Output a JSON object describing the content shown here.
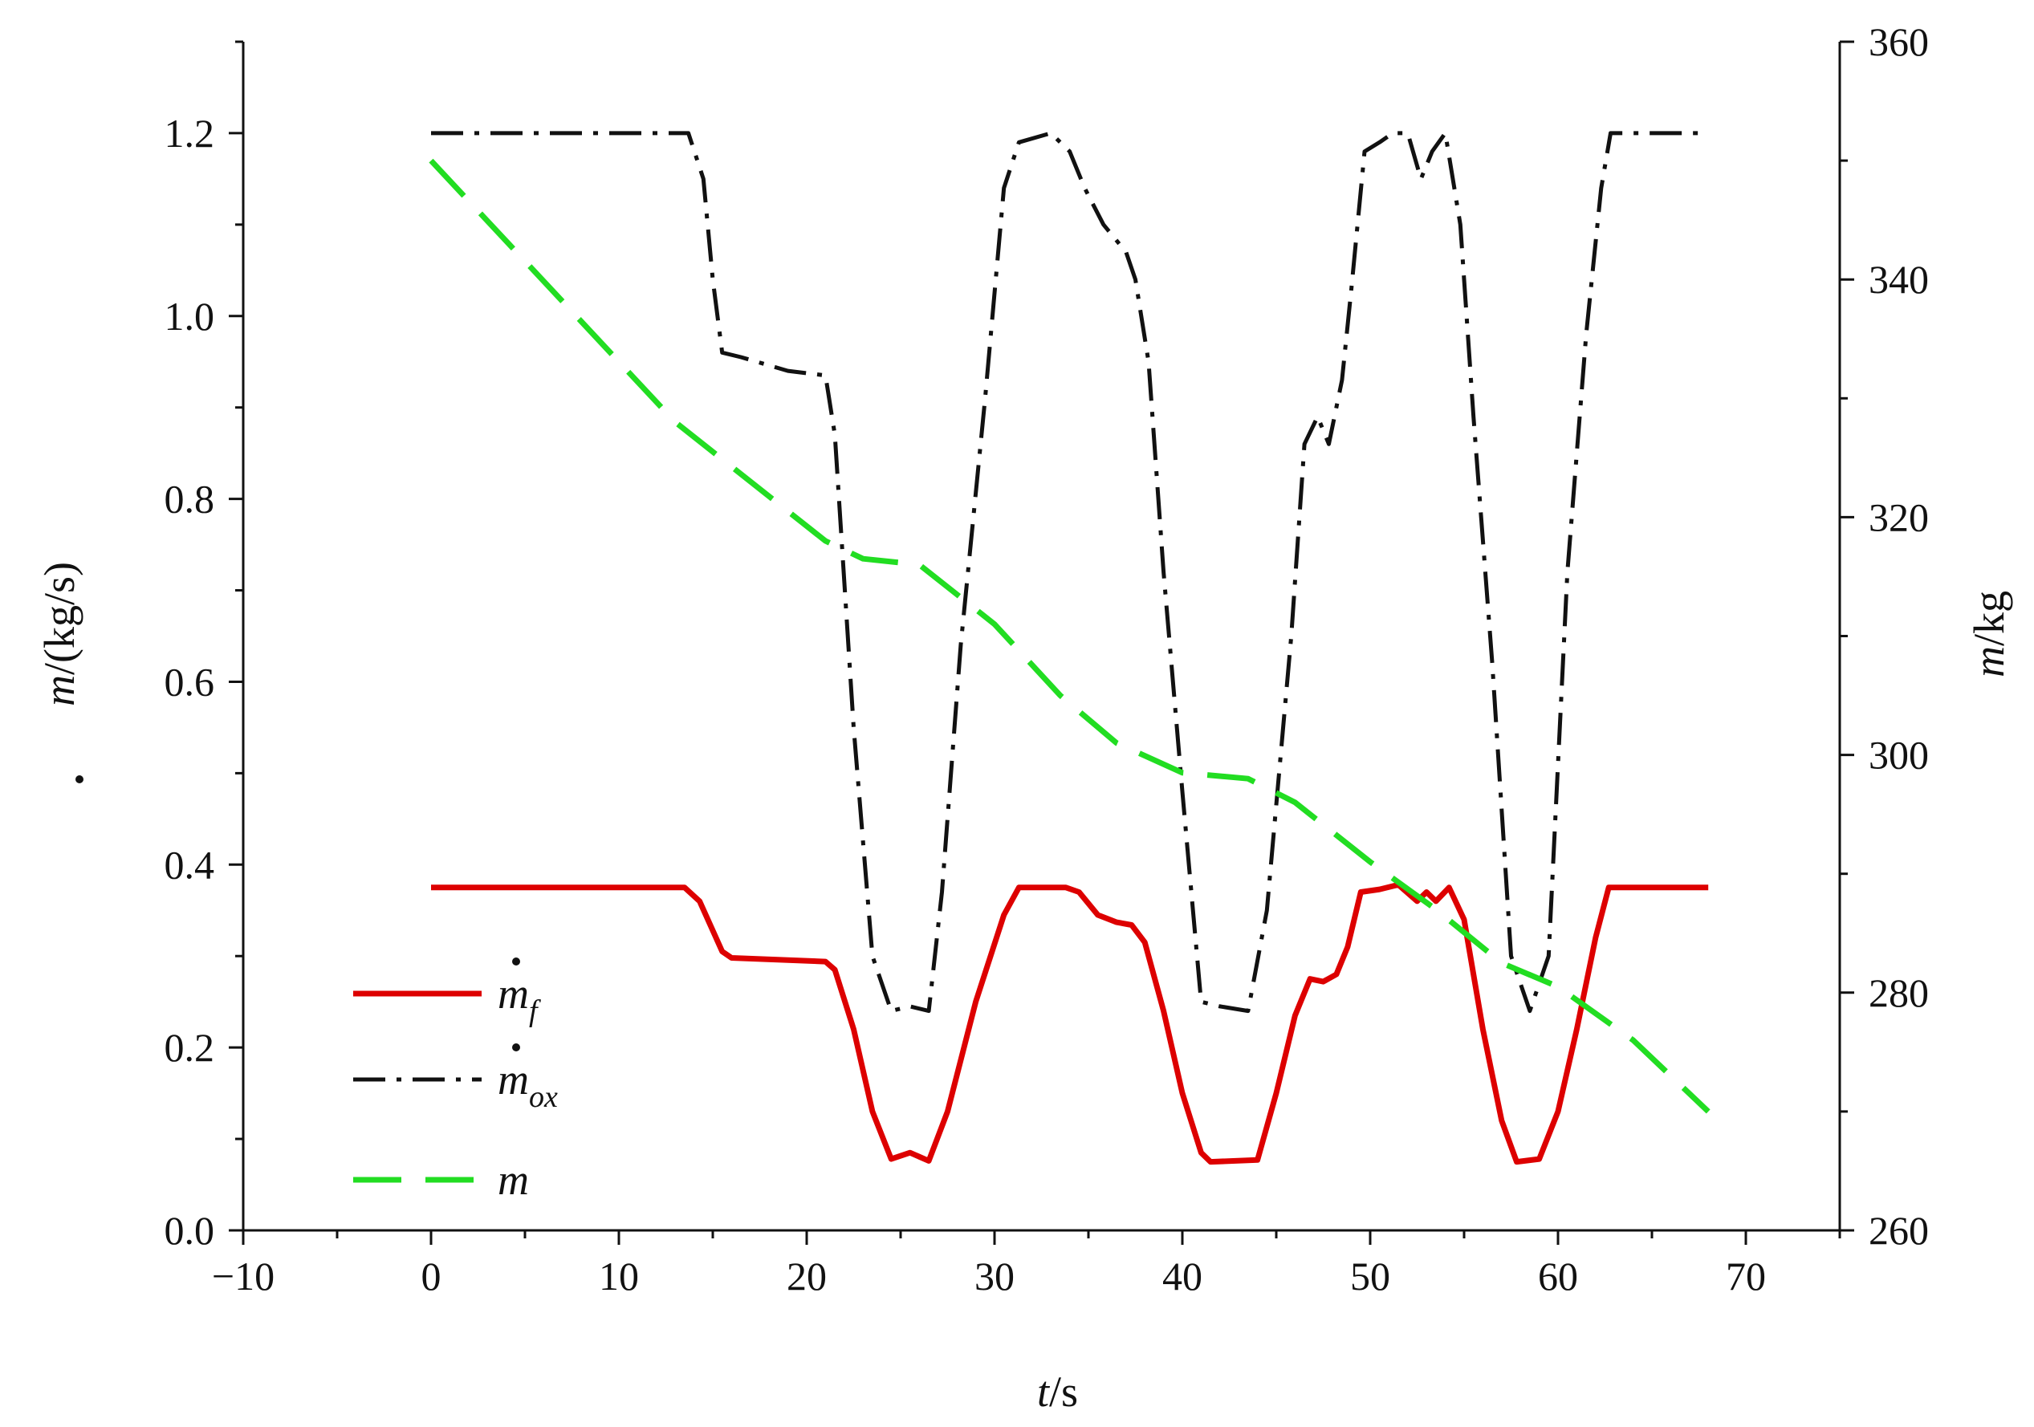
{
  "chart_data": {
    "type": "line",
    "x_axis": {
      "label_var": "t",
      "label_unit": "/s",
      "lim": [
        -10,
        75
      ],
      "ticks": [
        -10,
        0,
        10,
        20,
        30,
        40,
        50,
        60,
        70
      ],
      "tick_labels": [
        "−10",
        "0",
        "10",
        "20",
        "30",
        "40",
        "50",
        "60",
        "70"
      ],
      "minor_step": 5
    },
    "y_axis_left": {
      "label_var": "m",
      "label_unit": "/(kg/s)",
      "lim": [
        0,
        1.3
      ],
      "ticks": [
        0,
        0.2,
        0.4,
        0.6,
        0.8,
        1.0,
        1.2
      ],
      "tick_labels": [
        "0.0",
        "0.2",
        "0.4",
        "0.6",
        "0.8",
        "1.0",
        "1.2"
      ],
      "minor_step": 0.1
    },
    "y_axis_right": {
      "label_var": "m",
      "label_unit": "/kg",
      "lim": [
        260,
        360
      ],
      "ticks": [
        260,
        280,
        300,
        320,
        340,
        360
      ],
      "tick_labels": [
        "260",
        "280",
        "300",
        "320",
        "340",
        "360"
      ],
      "minor_step": 10
    },
    "grid": false,
    "legend_position": "lower-left",
    "series": [
      {
        "name": "m_f",
        "name_main": "m",
        "name_sub": "f",
        "dot": true,
        "axis": "left",
        "color": "#dd0000",
        "style": "solid",
        "points": [
          [
            0,
            0.375
          ],
          [
            13.5,
            0.375
          ],
          [
            14.3,
            0.36
          ],
          [
            15.5,
            0.305
          ],
          [
            16,
            0.298
          ],
          [
            21,
            0.294
          ],
          [
            21.5,
            0.285
          ],
          [
            22.5,
            0.22
          ],
          [
            23.5,
            0.13
          ],
          [
            24.5,
            0.078
          ],
          [
            25.5,
            0.085
          ],
          [
            26.5,
            0.076
          ],
          [
            27.5,
            0.13
          ],
          [
            29,
            0.25
          ],
          [
            30.5,
            0.345
          ],
          [
            31.3,
            0.375
          ],
          [
            33.8,
            0.375
          ],
          [
            34.5,
            0.37
          ],
          [
            35.5,
            0.345
          ],
          [
            36.5,
            0.337
          ],
          [
            37.3,
            0.334
          ],
          [
            38,
            0.315
          ],
          [
            39,
            0.24
          ],
          [
            40,
            0.15
          ],
          [
            41,
            0.085
          ],
          [
            41.5,
            0.075
          ],
          [
            44,
            0.077
          ],
          [
            45,
            0.15
          ],
          [
            46,
            0.235
          ],
          [
            46.8,
            0.275
          ],
          [
            47.5,
            0.272
          ],
          [
            48.2,
            0.28
          ],
          [
            48.8,
            0.31
          ],
          [
            49.5,
            0.37
          ],
          [
            50.5,
            0.373
          ],
          [
            51.5,
            0.378
          ],
          [
            52.5,
            0.36
          ],
          [
            53,
            0.37
          ],
          [
            53.5,
            0.36
          ],
          [
            54.2,
            0.375
          ],
          [
            55,
            0.34
          ],
          [
            56,
            0.22
          ],
          [
            57,
            0.12
          ],
          [
            57.8,
            0.075
          ],
          [
            59,
            0.078
          ],
          [
            60,
            0.13
          ],
          [
            61,
            0.22
          ],
          [
            62,
            0.32
          ],
          [
            62.7,
            0.375
          ],
          [
            68,
            0.375
          ]
        ]
      },
      {
        "name": "m_ox",
        "name_main": "m",
        "name_sub": "ox",
        "dot": true,
        "axis": "left",
        "color": "#111111",
        "style": "dashdot",
        "points": [
          [
            0,
            1.2
          ],
          [
            13.7,
            1.2
          ],
          [
            14.5,
            1.15
          ],
          [
            15,
            1.04
          ],
          [
            15.5,
            0.96
          ],
          [
            16.5,
            0.955
          ],
          [
            19,
            0.94
          ],
          [
            21,
            0.935
          ],
          [
            21.5,
            0.87
          ],
          [
            22.5,
            0.55
          ],
          [
            23.5,
            0.3
          ],
          [
            24.5,
            0.24
          ],
          [
            25.5,
            0.245
          ],
          [
            26.5,
            0.24
          ],
          [
            27.2,
            0.37
          ],
          [
            28.2,
            0.64
          ],
          [
            29.5,
            0.91
          ],
          [
            30.5,
            1.14
          ],
          [
            31.3,
            1.19
          ],
          [
            33,
            1.2
          ],
          [
            34,
            1.18
          ],
          [
            34.8,
            1.14
          ],
          [
            35.8,
            1.1
          ],
          [
            37,
            1.07
          ],
          [
            37.5,
            1.04
          ],
          [
            38.2,
            0.95
          ],
          [
            39,
            0.72
          ],
          [
            40,
            0.48
          ],
          [
            41,
            0.25
          ],
          [
            42,
            0.245
          ],
          [
            43.5,
            0.24
          ],
          [
            44.5,
            0.35
          ],
          [
            45.8,
            0.65
          ],
          [
            46.5,
            0.86
          ],
          [
            47.2,
            0.89
          ],
          [
            47.8,
            0.86
          ],
          [
            48.5,
            0.93
          ],
          [
            49,
            1.03
          ],
          [
            49.7,
            1.18
          ],
          [
            50.5,
            1.19
          ],
          [
            51.2,
            1.2
          ],
          [
            52,
            1.2
          ],
          [
            52.7,
            1.15
          ],
          [
            53.3,
            1.18
          ],
          [
            54,
            1.2
          ],
          [
            54.8,
            1.1
          ],
          [
            55.5,
            0.89
          ],
          [
            56.5,
            0.62
          ],
          [
            57.5,
            0.3
          ],
          [
            58.5,
            0.24
          ],
          [
            59.5,
            0.3
          ],
          [
            60.5,
            0.72
          ],
          [
            61.5,
            0.98
          ],
          [
            62.3,
            1.14
          ],
          [
            62.8,
            1.2
          ],
          [
            68,
            1.2
          ]
        ]
      },
      {
        "name": "m",
        "name_main": "m",
        "name_sub": "",
        "dot": false,
        "axis": "right",
        "color": "#22dd22",
        "style": "dashed",
        "points": [
          [
            0,
            350
          ],
          [
            13,
            328
          ],
          [
            21,
            318
          ],
          [
            23,
            316.5
          ],
          [
            26,
            316
          ],
          [
            30,
            311
          ],
          [
            33.5,
            305
          ],
          [
            36.5,
            301
          ],
          [
            40,
            298.5
          ],
          [
            43.5,
            298
          ],
          [
            46,
            296
          ],
          [
            50,
            291
          ],
          [
            53.5,
            287
          ],
          [
            57,
            282.5
          ],
          [
            60,
            280.5
          ],
          [
            64,
            276
          ],
          [
            68,
            270
          ]
        ]
      }
    ]
  }
}
